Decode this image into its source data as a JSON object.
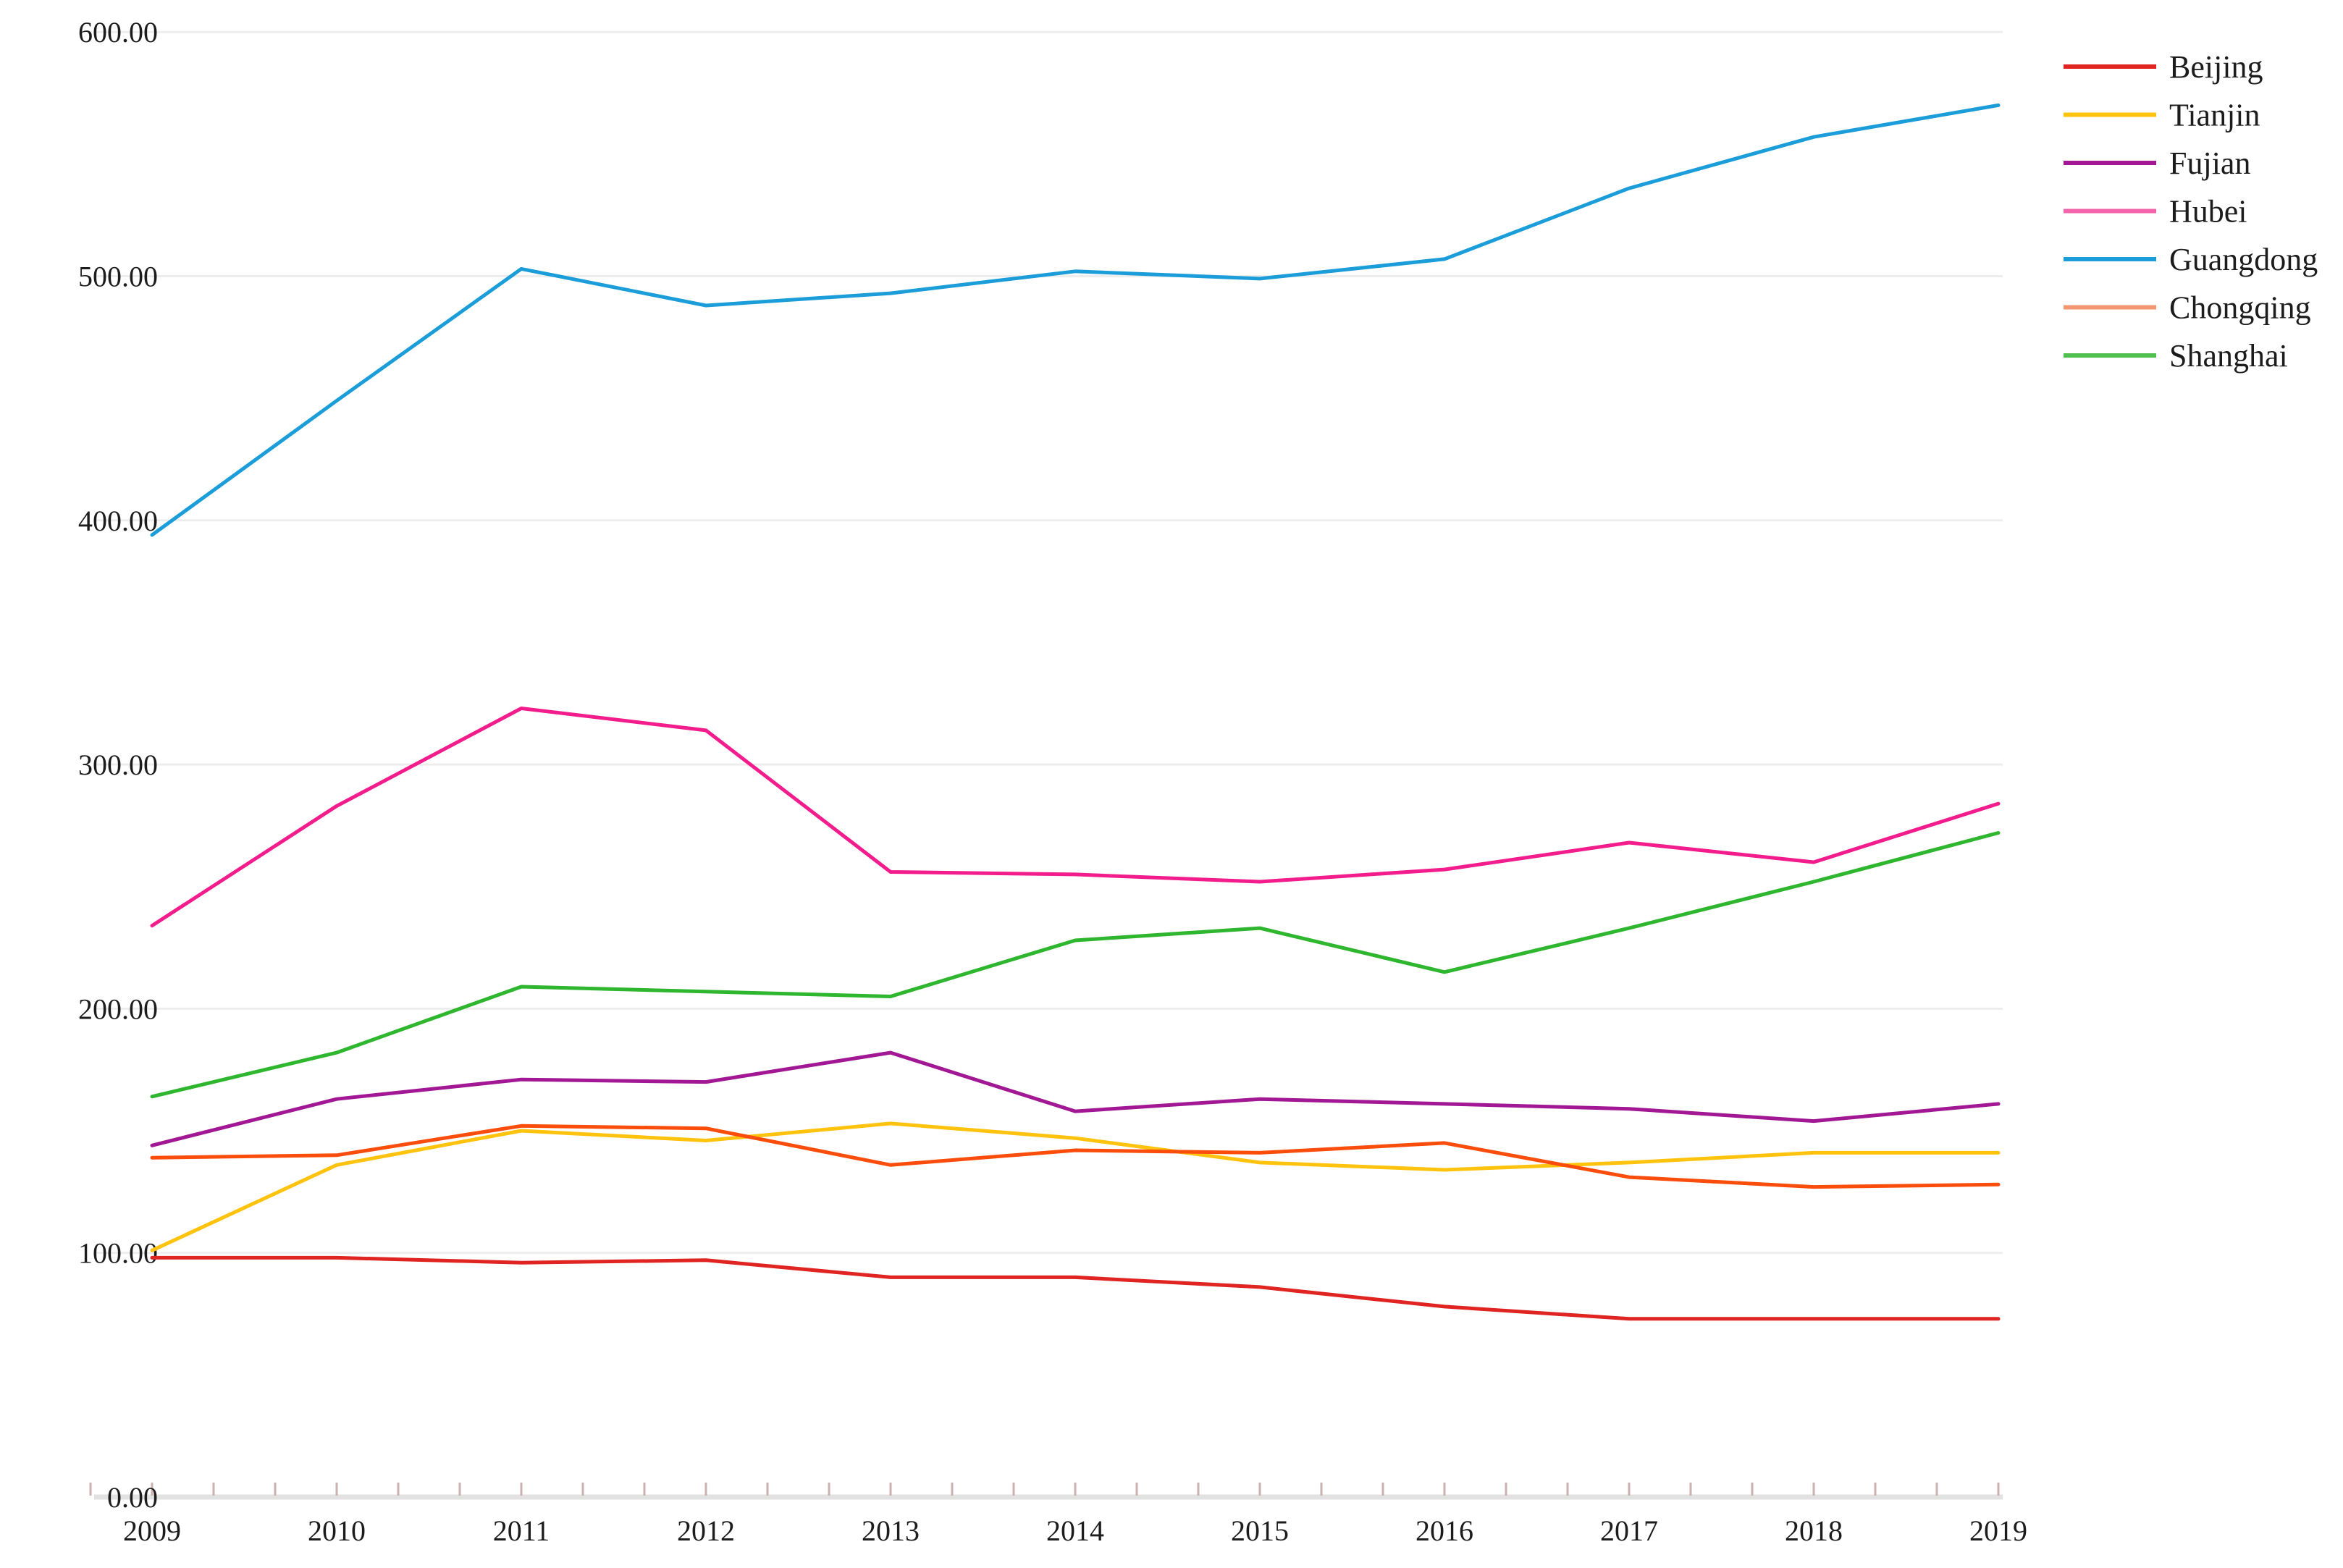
{
  "figure": {
    "background": "#ffffff",
    "text_color": "#1c1c1c",
    "gridline_color": "#ededed",
    "axis_line_color": "#e2e2e2",
    "tick_color": "#ccb1b1"
  },
  "chart_data": {
    "type": "line",
    "title": "",
    "xlabel": "",
    "ylabel": "",
    "x": [
      2009,
      2010,
      2011,
      2012,
      2013,
      2014,
      2015,
      2016,
      2017,
      2018,
      2019
    ],
    "x_tick_labels": [
      "2009",
      "2010",
      "2011",
      "2012",
      "2013",
      "2014",
      "2015",
      "2016",
      "2017",
      "2018",
      "2019"
    ],
    "ylim": [
      0,
      600
    ],
    "y_tick_step": 100,
    "y_tick_labels": [
      "0.00",
      "100.00",
      "200.00",
      "300.00",
      "400.00",
      "500.00",
      "600.00"
    ],
    "grid": "horizontal",
    "legend_position": "right-top",
    "x_minor_ticks_per_interval": 3,
    "series": [
      {
        "name": "Beijing",
        "color": "#e02421",
        "legend_color": "#e02421",
        "values": [
          98,
          98,
          96,
          97,
          90,
          90,
          86,
          78,
          73,
          73,
          73
        ]
      },
      {
        "name": "Tianjin",
        "color": "#ffc20d",
        "legend_color": "#ffc20d",
        "values": [
          101,
          136,
          150,
          146,
          153,
          147,
          137,
          134,
          137,
          141,
          141
        ]
      },
      {
        "name": "Fujian",
        "color": "#a21894",
        "legend_color": "#a21894",
        "values": [
          144,
          163,
          171,
          170,
          182,
          158,
          163,
          161,
          159,
          154,
          161
        ]
      },
      {
        "name": "Hubei",
        "color": "#f31c8d",
        "legend_color": "#f464ac",
        "values": [
          234,
          283,
          323,
          314,
          256,
          255,
          252,
          257,
          268,
          260,
          284
        ]
      },
      {
        "name": "Guangdong",
        "color": "#1b9dd9",
        "legend_color": "#1b9dd9",
        "values": [
          394,
          449,
          503,
          488,
          493,
          502,
          499,
          507,
          536,
          557,
          570
        ]
      },
      {
        "name": "Chongqing",
        "color": "#fa4d0b",
        "legend_color": "#f69572",
        "values": [
          139,
          140,
          152,
          151,
          136,
          142,
          141,
          145,
          131,
          127,
          128
        ]
      },
      {
        "name": "Shanghai",
        "color": "#2eb62e",
        "legend_color": "#4fbf4f",
        "values": [
          164,
          182,
          209,
          207,
          205,
          228,
          233,
          215,
          233,
          252,
          272
        ]
      }
    ]
  }
}
